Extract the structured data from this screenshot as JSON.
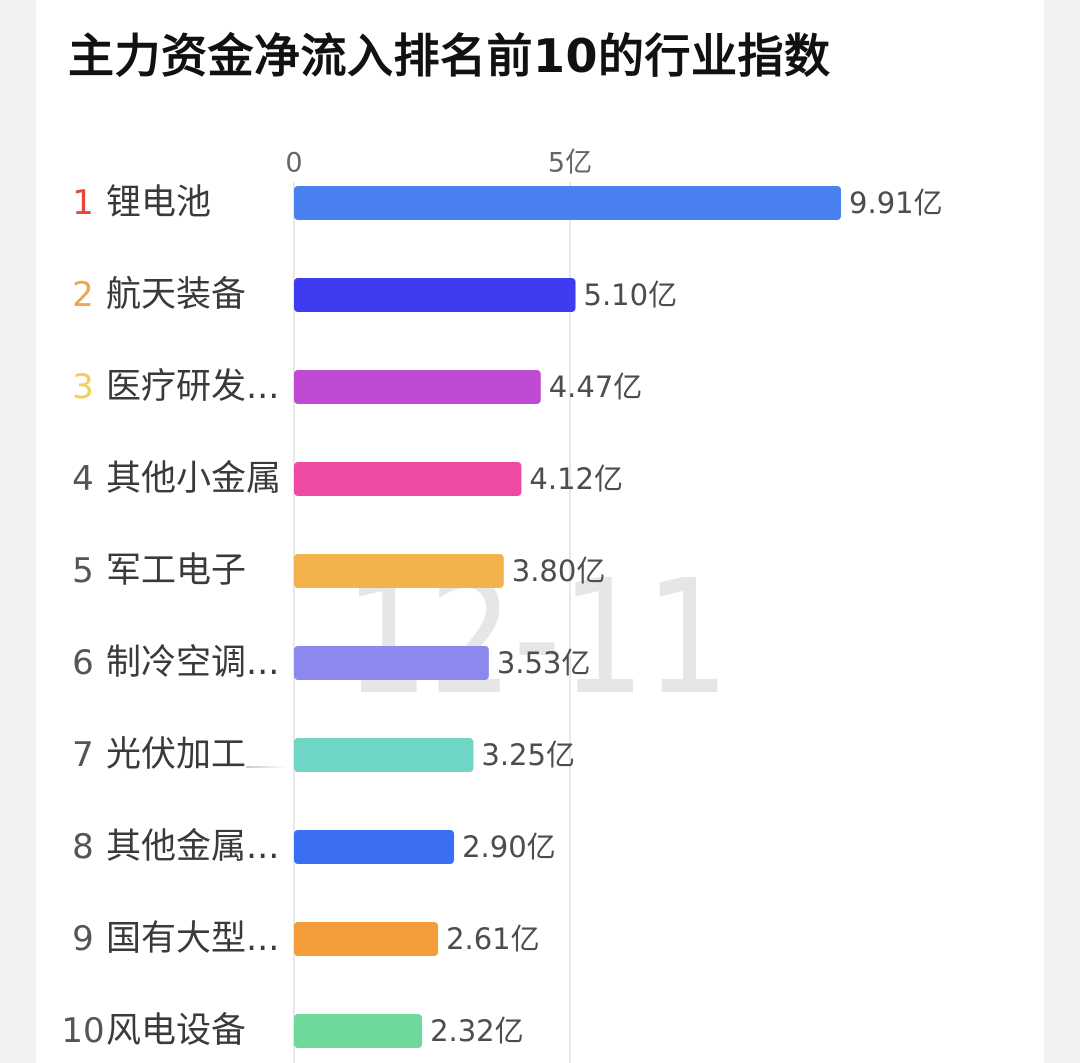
{
  "chart_data": {
    "type": "bar",
    "orientation": "horizontal",
    "title": "主力资金净流入排名前10的行业指数",
    "ranks": [
      "1",
      "2",
      "3",
      "4",
      "5",
      "6",
      "7",
      "8",
      "9",
      "10"
    ],
    "categories": [
      "锂电池",
      "航天装备",
      "医疗研发...",
      "其他小金属",
      "军工电子",
      "制冷空调...",
      "光伏加工",
      "其他金属...",
      "国有大型...",
      "风电设备"
    ],
    "values": [
      9.91,
      5.1,
      4.47,
      4.12,
      3.8,
      3.53,
      3.25,
      2.9,
      2.61,
      2.32
    ],
    "value_labels": [
      "9.91亿",
      "5.10亿",
      "4.47亿",
      "4.12亿",
      "3.80亿",
      "3.53亿",
      "3.25亿",
      "2.90亿",
      "2.61亿",
      "2.32亿"
    ],
    "xlim": [
      0,
      10
    ],
    "x_ticks": [
      0,
      5
    ],
    "x_tick_labels": [
      "0",
      "5亿"
    ],
    "xlabel": "",
    "ylabel": "",
    "grid": true,
    "bar_colors": [
      "#4a80f0",
      "#3e3bf1",
      "#bf4bd4",
      "#ee4aa5",
      "#f3b24b",
      "#8d88ee",
      "#6fd6c6",
      "#3a6ef3",
      "#f29d39",
      "#6fd99c"
    ],
    "rank_colors": [
      "#e4473b",
      "#f0a650",
      "#f5cd58",
      "#555555",
      "#555555",
      "#555555",
      "#555555",
      "#555555",
      "#555555",
      "#555555"
    ],
    "watermark": "12-11"
  }
}
